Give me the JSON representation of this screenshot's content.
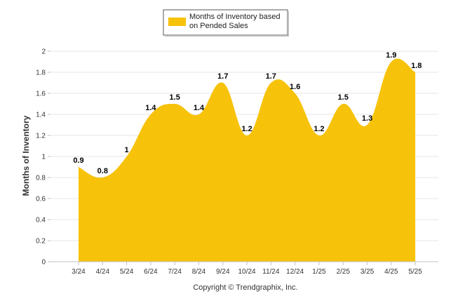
{
  "chart_data": {
    "type": "area",
    "title": "",
    "xlabel": "",
    "ylabel": "Months of Inventory",
    "ylim": [
      0,
      2
    ],
    "yticks": [
      "0",
      "0.2",
      "0.4",
      "0.6",
      "0.8",
      "1",
      "1.2",
      "1.4",
      "1.6",
      "1.8",
      "2"
    ],
    "categories": [
      "3/24",
      "4/24",
      "5/24",
      "6/24",
      "7/24",
      "8/24",
      "9/24",
      "10/24",
      "11/24",
      "12/24",
      "1/25",
      "2/25",
      "3/25",
      "4/25",
      "5/25"
    ],
    "series": [
      {
        "name": "Months of Inventory based on Pended Sales",
        "values": [
          0.9,
          0.8,
          1.0,
          1.4,
          1.5,
          1.4,
          1.7,
          1.2,
          1.7,
          1.6,
          1.2,
          1.5,
          1.3,
          1.9,
          1.8
        ],
        "labels": [
          "0.9",
          "0.8",
          "1",
          "1.4",
          "1.5",
          "1.4",
          "1.7",
          "1.2",
          "1.7",
          "1.6",
          "1.2",
          "1.5",
          "1.3",
          "1.9",
          "1.8"
        ],
        "color": "#f7c20a"
      }
    ],
    "legend": {
      "position": "top-center",
      "line1": "Months of Inventory based",
      "line2": "on Pended Sales"
    },
    "grid": "horizontal",
    "colors": {
      "fill": "#f7c20a",
      "grid": "#e6e6e6",
      "axis": "#c0c0c0",
      "text": "#333333"
    }
  },
  "footer": {
    "copyright": "Copyright © Trendgraphix, Inc."
  }
}
